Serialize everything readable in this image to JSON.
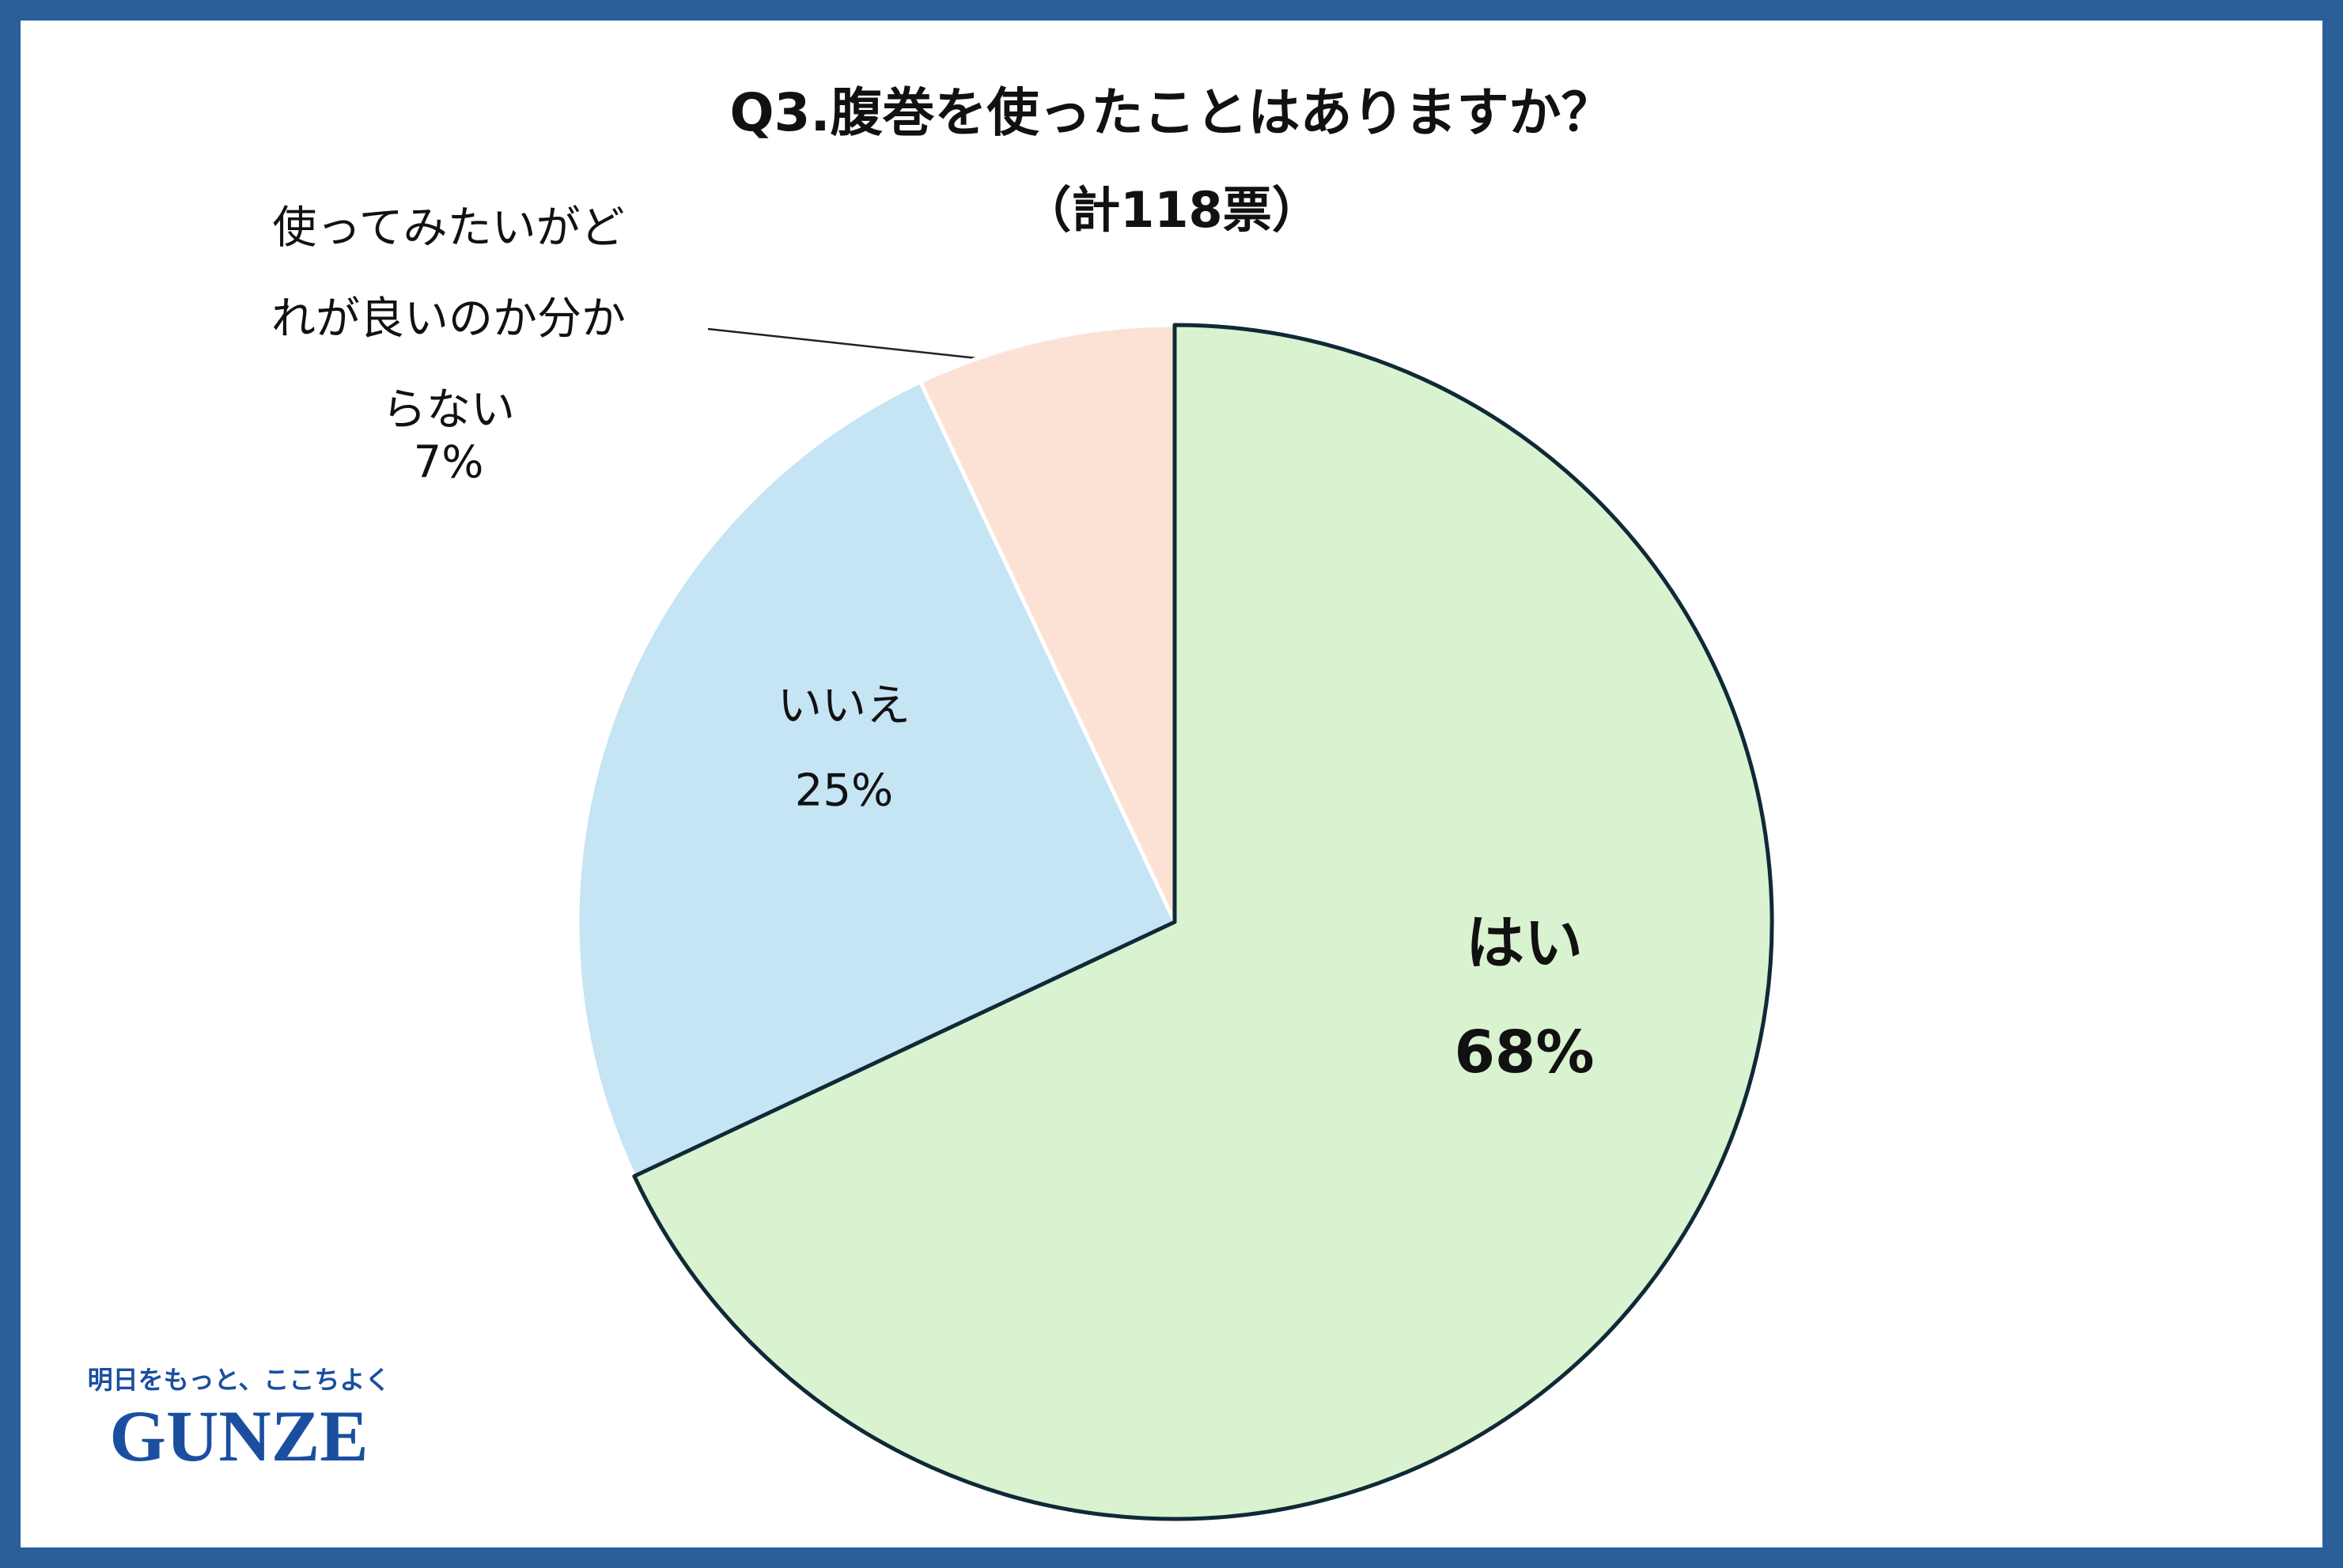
{
  "chart_data": {
    "type": "pie",
    "title": "Q3.腹巻を使ったことはありますか？",
    "subtitle": "（計118票）",
    "categories": [
      "はい",
      "いいえ",
      "使ってみたいがどれが良いのか分からない"
    ],
    "values": [
      68,
      25,
      7
    ],
    "value_labels": [
      "68%",
      "25%",
      "7%"
    ],
    "colors": [
      "#d9f2d0",
      "#c5e4f4",
      "#fbe2d5"
    ]
  },
  "logo": {
    "tagline": "明日をもっと、ここちよく",
    "brand": "GUNZE"
  }
}
